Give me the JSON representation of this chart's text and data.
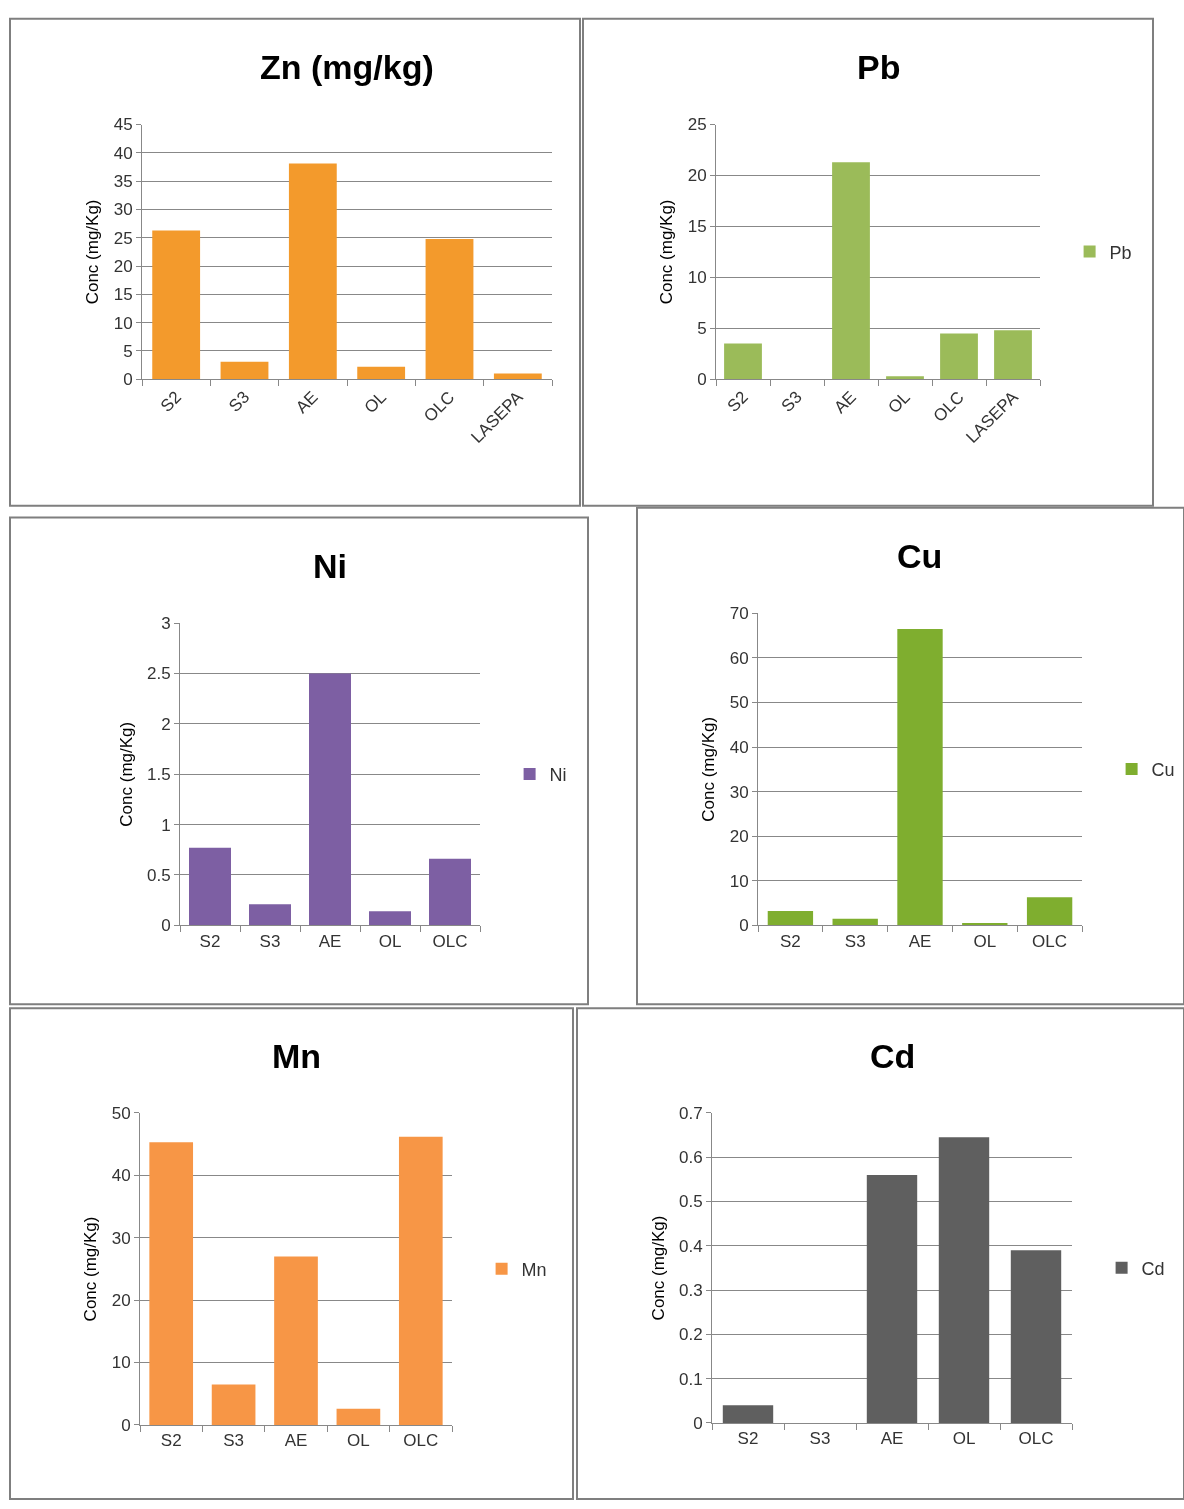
{
  "chart_data": [
    {
      "type": "bar",
      "title": "Zn (mg/kg)",
      "ylabel": "Conc (mg/Kg)",
      "categories": [
        "S2",
        "S3",
        "AE",
        "OL",
        "OLC",
        "LASEPA"
      ],
      "series": [
        {
          "color": "#f39a2c",
          "values": [
            26.3,
            3.1,
            38.1,
            2.2,
            24.8,
            1.0
          ]
        }
      ],
      "ylim": [
        0,
        45
      ],
      "yticks": [
        0,
        5,
        10,
        15,
        20,
        25,
        30,
        35,
        40,
        45
      ],
      "grid": "y",
      "legend": false
    },
    {
      "type": "bar",
      "title": "Pb",
      "ylabel": "Conc (mg/Kg)",
      "categories": [
        "S2",
        "S3",
        "AE",
        "OL",
        "OLC",
        "LASEPA"
      ],
      "series": [
        {
          "name": "Pb",
          "color": "#9bbb59",
          "values": [
            3.5,
            0,
            21.3,
            0.3,
            4.5,
            4.8
          ]
        }
      ],
      "ylim": [
        0,
        25
      ],
      "yticks": [
        0,
        5,
        10,
        15,
        20,
        25
      ],
      "grid": "y",
      "legend": "right"
    },
    {
      "type": "bar",
      "title": "Ni",
      "ylabel": "Conc (mg/Kg)",
      "categories": [
        "S2",
        "S3",
        "AE",
        "OL",
        "OLC"
      ],
      "series": [
        {
          "name": "Ni",
          "color": "#7d5fa3",
          "values": [
            0.77,
            0.21,
            2.5,
            0.14,
            0.66
          ]
        }
      ],
      "ylim": [
        0,
        3
      ],
      "yticks": [
        0,
        0.5,
        1,
        1.5,
        2,
        2.5,
        3
      ],
      "grid": "y",
      "legend": "right"
    },
    {
      "type": "bar",
      "title": "Cu",
      "ylabel": "Conc (mg/Kg)",
      "categories": [
        "S2",
        "S3",
        "AE",
        "OL",
        "OLC"
      ],
      "series": [
        {
          "name": "Cu",
          "color": "#7fae2f",
          "values": [
            3.2,
            1.5,
            66.5,
            0.5,
            6.3
          ]
        }
      ],
      "ylim": [
        0,
        70
      ],
      "yticks": [
        0,
        10,
        20,
        30,
        40,
        50,
        60,
        70
      ],
      "grid": "y",
      "legend": "right"
    },
    {
      "type": "bar",
      "title": "Mn",
      "ylabel": "Conc (mg/Kg)",
      "categories": [
        "S2",
        "S3",
        "AE",
        "OL",
        "OLC"
      ],
      "series": [
        {
          "name": "Mn",
          "color": "#f79646",
          "values": [
            45.3,
            6.5,
            27.0,
            2.6,
            46.2
          ]
        }
      ],
      "ylim": [
        0,
        50
      ],
      "yticks": [
        0,
        10,
        20,
        30,
        40,
        50
      ],
      "grid": "y",
      "legend": "right"
    },
    {
      "type": "bar",
      "title": "Cd",
      "ylabel": "Conc (mg/Kg)",
      "categories": [
        "S2",
        "S3",
        "AE",
        "OL",
        "OLC"
      ],
      "series": [
        {
          "name": "Cd",
          "color": "#5f5f5f",
          "values": [
            0.04,
            0,
            0.56,
            0.645,
            0.39
          ]
        }
      ],
      "ylim": [
        0,
        0.7
      ],
      "yticks": [
        0,
        0.1,
        0.2,
        0.3,
        0.4,
        0.5,
        0.6,
        0.7
      ],
      "grid": "y",
      "legend": "right"
    }
  ]
}
